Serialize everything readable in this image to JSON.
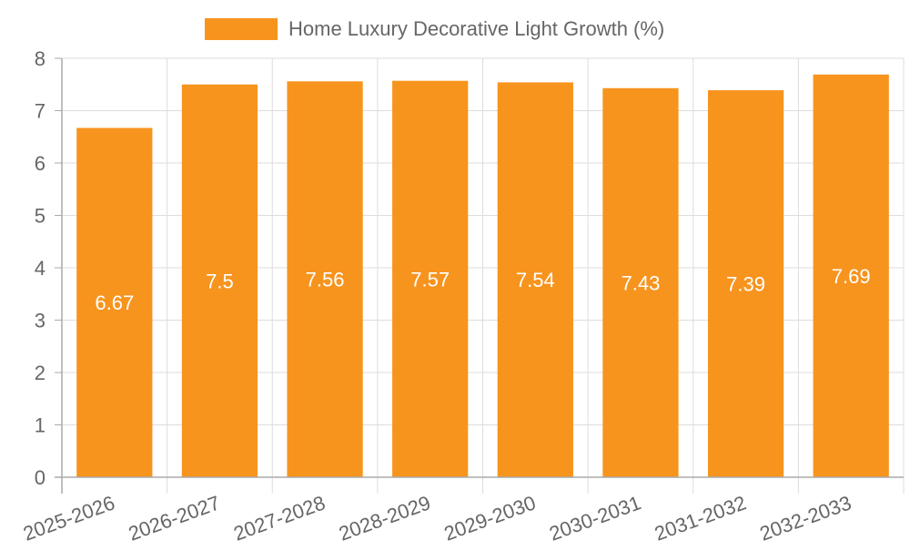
{
  "chart_data": {
    "type": "bar",
    "title": "",
    "xlabel": "",
    "ylabel": "",
    "categories": [
      "2025-2026",
      "2026-2027",
      "2027-2028",
      "2028-2029",
      "2029-2030",
      "2030-2031",
      "2031-2032",
      "2032-2033"
    ],
    "series": [
      {
        "name": "Home Luxury Decorative Light Growth (%)",
        "values": [
          6.67,
          7.5,
          7.56,
          7.57,
          7.54,
          7.43,
          7.39,
          7.69
        ]
      }
    ],
    "ylim": [
      0,
      8
    ],
    "yticks": [
      0,
      1,
      2,
      3,
      4,
      5,
      6,
      7,
      8
    ],
    "grid": true,
    "legend_position": "top-center",
    "data_labels": true
  },
  "colors": {
    "bar": "#F7941E",
    "grid": "#DDDDDD",
    "axis": "#AAAAAA",
    "text": "#666666",
    "label": "#FFFFFF"
  }
}
